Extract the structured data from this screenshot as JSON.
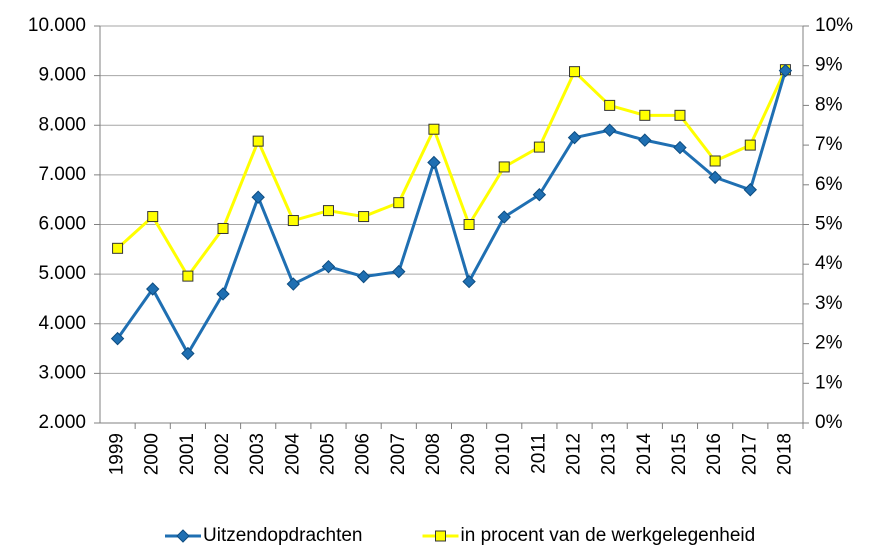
{
  "chart_data": {
    "type": "line",
    "categories": [
      "1999",
      "2000",
      "2001",
      "2002",
      "2003",
      "2004",
      "2005",
      "2006",
      "2007",
      "2008",
      "2009",
      "2010",
      "2011",
      "2012",
      "2013",
      "2014",
      "2015",
      "2016",
      "2017",
      "2018"
    ],
    "series": [
      {
        "name": "Uitzendopdrachten",
        "color": "#1f6fb2",
        "axis": "y",
        "marker": "diamond",
        "values": [
          3700,
          4700,
          3400,
          4600,
          6550,
          4800,
          5150,
          4950,
          5050,
          7250,
          4850,
          6150,
          6600,
          7750,
          7900,
          7700,
          7550,
          6950,
          6700,
          9100
        ]
      },
      {
        "name": "in procent van de werkgelegenheid",
        "color": "#ffff00",
        "axis": "y2",
        "marker": "square",
        "values": [
          4.4,
          5.2,
          3.7,
          4.9,
          7.1,
          5.1,
          5.35,
          5.2,
          5.55,
          7.4,
          5.0,
          6.45,
          6.95,
          8.85,
          8.0,
          7.75,
          7.75,
          6.6,
          7.0,
          8.9
        ]
      }
    ],
    "ylim": [
      2000,
      10000
    ],
    "yticks": [
      {
        "value": 2000,
        "label": "2.000"
      },
      {
        "value": 3000,
        "label": "3.000"
      },
      {
        "value": 4000,
        "label": "4.000"
      },
      {
        "value": 5000,
        "label": "5.000"
      },
      {
        "value": 6000,
        "label": "6.000"
      },
      {
        "value": 7000,
        "label": "7.000"
      },
      {
        "value": 8000,
        "label": "8.000"
      },
      {
        "value": 9000,
        "label": "9.000"
      },
      {
        "value": 10000,
        "label": "10.000"
      }
    ],
    "y2lim": [
      0,
      10
    ],
    "y2ticks": [
      {
        "value": 0,
        "label": "0%"
      },
      {
        "value": 1,
        "label": "1%"
      },
      {
        "value": 2,
        "label": "2%"
      },
      {
        "value": 3,
        "label": "3%"
      },
      {
        "value": 4,
        "label": "4%"
      },
      {
        "value": 5,
        "label": "5%"
      },
      {
        "value": 6,
        "label": "6%"
      },
      {
        "value": 7,
        "label": "7%"
      },
      {
        "value": 8,
        "label": "8%"
      },
      {
        "value": 9,
        "label": "9%"
      },
      {
        "value": 10,
        "label": "10%"
      }
    ],
    "grid": true,
    "legend": "bottom"
  }
}
